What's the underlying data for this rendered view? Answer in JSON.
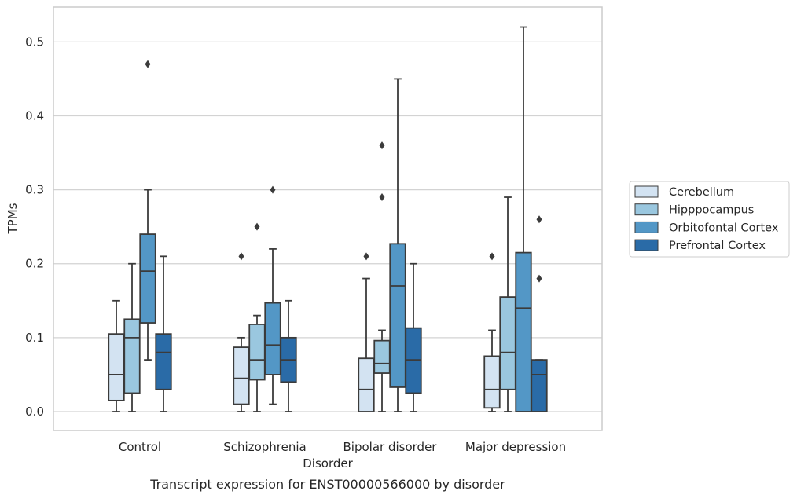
{
  "chart_data": {
    "type": "box",
    "title": "",
    "caption": "Transcript expression for ENST00000566000 by disorder",
    "xlabel": "Disorder",
    "ylabel": "TPMs",
    "ylim": [
      -0.025,
      0.55
    ],
    "yticks": [
      "0.0",
      "0.1",
      "0.2",
      "0.3",
      "0.4",
      "0.5"
    ],
    "grid": "horizontal",
    "legend_position": "right",
    "categories": [
      "Control",
      "Schizophrenia",
      "Bipolar disorder",
      "Major depression"
    ],
    "series": [
      {
        "name": "Cerebellum",
        "color": "#d3e3f2",
        "boxes": [
          {
            "whisker_low": 0.0,
            "q1": 0.015,
            "median": 0.05,
            "q3": 0.105,
            "whisker_high": 0.15,
            "outliers": []
          },
          {
            "whisker_low": 0.0,
            "q1": 0.01,
            "median": 0.045,
            "q3": 0.087,
            "whisker_high": 0.1,
            "outliers": [
              0.21
            ]
          },
          {
            "whisker_low": 0.0,
            "q1": 0.0,
            "median": 0.03,
            "q3": 0.072,
            "whisker_high": 0.18,
            "outliers": [
              0.21
            ]
          },
          {
            "whisker_low": 0.0,
            "q1": 0.005,
            "median": 0.03,
            "q3": 0.075,
            "whisker_high": 0.11,
            "outliers": [
              0.21
            ]
          }
        ]
      },
      {
        "name": "Hipppocampus",
        "color": "#9ac7df",
        "boxes": [
          {
            "whisker_low": 0.0,
            "q1": 0.025,
            "median": 0.1,
            "q3": 0.125,
            "whisker_high": 0.2,
            "outliers": []
          },
          {
            "whisker_low": 0.0,
            "q1": 0.043,
            "median": 0.07,
            "q3": 0.118,
            "whisker_high": 0.13,
            "outliers": [
              0.25
            ]
          },
          {
            "whisker_low": 0.0,
            "q1": 0.052,
            "median": 0.065,
            "q3": 0.096,
            "whisker_high": 0.11,
            "outliers": [
              0.29,
              0.36
            ]
          },
          {
            "whisker_low": 0.0,
            "q1": 0.03,
            "median": 0.08,
            "q3": 0.155,
            "whisker_high": 0.29,
            "outliers": []
          }
        ]
      },
      {
        "name": "Orbitofontal Cortex",
        "color": "#5397c6",
        "boxes": [
          {
            "whisker_low": 0.07,
            "q1": 0.12,
            "median": 0.19,
            "q3": 0.24,
            "whisker_high": 0.3,
            "outliers": [
              0.47
            ]
          },
          {
            "whisker_low": 0.01,
            "q1": 0.05,
            "median": 0.09,
            "q3": 0.147,
            "whisker_high": 0.22,
            "outliers": [
              0.3
            ]
          },
          {
            "whisker_low": 0.0,
            "q1": 0.033,
            "median": 0.17,
            "q3": 0.227,
            "whisker_high": 0.45,
            "outliers": []
          },
          {
            "whisker_low": 0.0,
            "q1": 0.0,
            "median": 0.14,
            "q3": 0.215,
            "whisker_high": 0.52,
            "outliers": []
          }
        ]
      },
      {
        "name": "Prefrontal Cortex",
        "color": "#2a6ba7",
        "boxes": [
          {
            "whisker_low": 0.0,
            "q1": 0.03,
            "median": 0.08,
            "q3": 0.105,
            "whisker_high": 0.21,
            "outliers": []
          },
          {
            "whisker_low": 0.0,
            "q1": 0.04,
            "median": 0.07,
            "q3": 0.1,
            "whisker_high": 0.15,
            "outliers": []
          },
          {
            "whisker_low": 0.0,
            "q1": 0.025,
            "median": 0.07,
            "q3": 0.113,
            "whisker_high": 0.2,
            "outliers": []
          },
          {
            "whisker_low": 0.0,
            "q1": 0.0,
            "median": 0.05,
            "q3": 0.07,
            "whisker_high": 0.07,
            "outliers": [
              0.18,
              0.26
            ]
          }
        ]
      }
    ],
    "colors": {
      "box_edge": "#3b3b3b",
      "grid": "#d3d3d3",
      "frame": "#cccccc",
      "text": "#262626"
    }
  }
}
